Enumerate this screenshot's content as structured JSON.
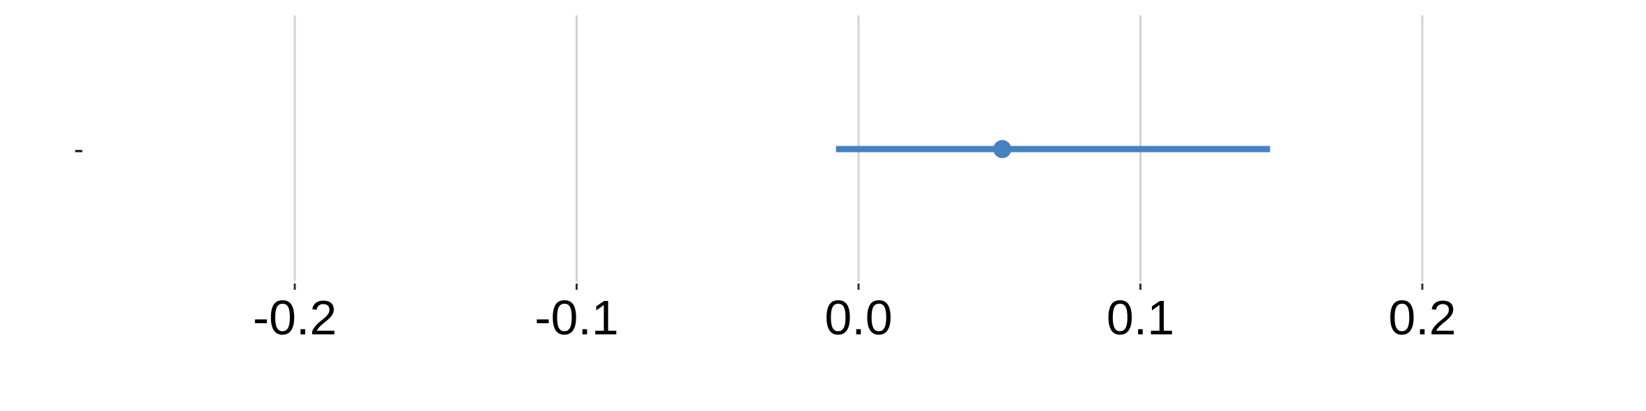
{
  "chart_data": {
    "type": "forest",
    "title": "",
    "xlabel": "",
    "ylabel": "",
    "xlim": [
      -0.3,
      0.28
    ],
    "x_ticks": [
      -0.2,
      -0.1,
      0.0,
      0.1,
      0.2
    ],
    "x_tick_labels": [
      "-0.2",
      "-0.1",
      "0.0",
      "0.1",
      "0.2"
    ],
    "grid": "vertical",
    "legend": "none",
    "series": [
      {
        "category": "-",
        "estimate": 0.051,
        "ci_low": -0.008,
        "ci_high": 0.146,
        "color": "#4682c1"
      }
    ],
    "grid_color": "#d3d3d3",
    "tick_color": "#333333"
  }
}
